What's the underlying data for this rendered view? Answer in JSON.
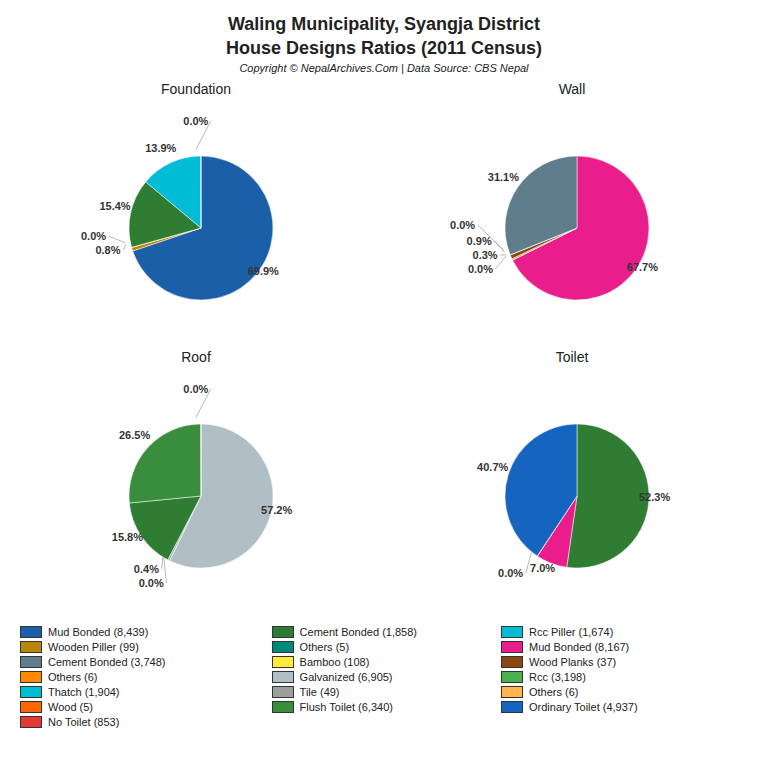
{
  "title": "Waling Municipality, Syangja District\nHouse Designs Ratios (2011 Census)",
  "subtitle": "Copyright © NepalArchives.Com | Data Source: CBS Nepal",
  "chart_data": [
    {
      "type": "pie",
      "title": "Foundation",
      "values": [
        69.9,
        0.8,
        0.05,
        15.4,
        13.9,
        0.05
      ],
      "value_labels": [
        "69.9%",
        "0.8%",
        "0.0%",
        "15.4%",
        "13.9%",
        "0.0%"
      ],
      "colors": [
        "#1a5fa8",
        "#b8860b",
        "#ff8c00",
        "#2e7d32",
        "#00bcd4",
        "#808080"
      ],
      "data_labels": true
    },
    {
      "type": "pie",
      "title": "Wall",
      "values": [
        67.7,
        0.05,
        0.3,
        0.9,
        0.05,
        31.1
      ],
      "value_labels": [
        "67.7%",
        "0.0%",
        "0.3%",
        "0.9%",
        "0.0%",
        "31.1%"
      ],
      "colors": [
        "#e91e8c",
        "#ffeb3b",
        "#b8860b",
        "#8b4513",
        "#4caf50",
        "#607d8b"
      ],
      "data_labels": true
    },
    {
      "type": "pie",
      "title": "Roof",
      "values": [
        57.2,
        0.05,
        0.4,
        15.8,
        26.5,
        0.05
      ],
      "value_labels": [
        "57.2%",
        "0.0%",
        "0.4%",
        "15.8%",
        "26.5%",
        "0.0%"
      ],
      "colors": [
        "#b0bec5",
        "#ffeb3b",
        "#9e9e9e",
        "#2e7d32",
        "#388e3c",
        "#e57373"
      ],
      "data_labels": true
    },
    {
      "type": "pie",
      "title": "Toilet",
      "values": [
        52.3,
        7.0,
        0.05,
        40.7
      ],
      "value_labels": [
        "52.3%",
        "7.0%",
        "0.0%",
        "40.7%"
      ],
      "colors": [
        "#2e7d32",
        "#e91e8c",
        "#ffb74d",
        "#1565c0"
      ],
      "data_labels": true
    }
  ],
  "legend_entries": [
    [
      {
        "label": "Mud Bonded (8,439)",
        "color": "#1a5fa8"
      },
      {
        "label": "Wooden Piller (99)",
        "color": "#b8860b"
      },
      {
        "label": "Cement Bonded (3,748)",
        "color": "#607d8b"
      },
      {
        "label": "Others (6)",
        "color": "#ff8c00"
      },
      {
        "label": "Thatch (1,904)",
        "color": "#00bcd4"
      },
      {
        "label": "Wood (5)",
        "color": "#ff6600"
      },
      {
        "label": "No Toilet (853)",
        "color": "#e53935"
      }
    ],
    [
      {
        "label": "Cement Bonded (1,858)",
        "color": "#2e7d32"
      },
      {
        "label": "Others (5)",
        "color": "#00897b"
      },
      {
        "label": "Bamboo (108)",
        "color": "#ffeb3b"
      },
      {
        "label": "Galvanized (6,905)",
        "color": "#b0bec5"
      },
      {
        "label": "Tile (49)",
        "color": "#9e9e9e"
      },
      {
        "label": "Flush Toilet (6,340)",
        "color": "#388e3c"
      }
    ],
    [
      {
        "label": "Rcc Piller (1,674)",
        "color": "#00bcd4"
      },
      {
        "label": "Mud Bonded (8,167)",
        "color": "#e91e8c"
      },
      {
        "label": "Wood Planks (37)",
        "color": "#8b4513"
      },
      {
        "label": "Rcc (3,198)",
        "color": "#4caf50"
      },
      {
        "label": "Others (6)",
        "color": "#ffb74d"
      },
      {
        "label": "Ordinary Toilet (4,937)",
        "color": "#1565c0"
      }
    ]
  ]
}
